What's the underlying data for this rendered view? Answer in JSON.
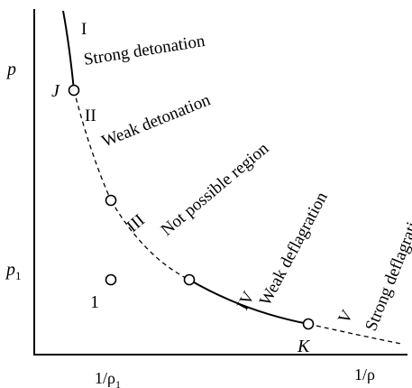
{
  "axes": {
    "y_label": "p",
    "y_tick": "p",
    "y_tick_sub": "1",
    "x_tick": "1/ρ",
    "x_tick_sub": "1",
    "x_label": "1/ρ"
  },
  "points": {
    "J": "J",
    "K": "K",
    "initial": "1"
  },
  "regions": [
    {
      "numeral": "I",
      "name": "Strong detonation"
    },
    {
      "numeral": "II",
      "name": "Weak detonation"
    },
    {
      "numeral": "III",
      "name": "Not possible region"
    },
    {
      "numeral": "IV",
      "name": "Weak deflagration"
    },
    {
      "numeral": "V",
      "name": "Strong deflagration"
    }
  ],
  "colors": {
    "ink": "#000000",
    "background": "#ffffff"
  }
}
